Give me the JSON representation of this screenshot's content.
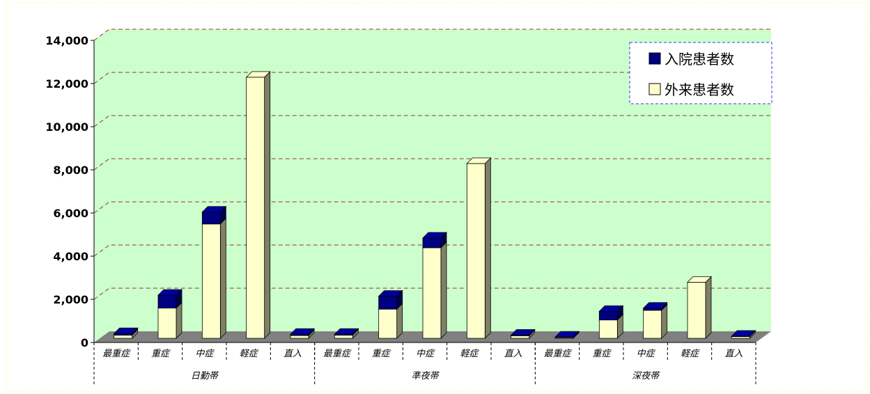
{
  "chart_data": {
    "type": "bar",
    "stacked": true,
    "three_d": true,
    "title": "",
    "xlabel": "",
    "ylabel": "",
    "ylim": [
      0,
      14000
    ],
    "yticks": [
      "0",
      "2,000",
      "4,000",
      "6,000",
      "8,000",
      "10,000",
      "12,000",
      "14,000"
    ],
    "grid": true,
    "legend_position": "top-right",
    "groups": [
      {
        "label": "日勤帯",
        "categories": [
          "最重症",
          "重症",
          "中症",
          "軽症",
          "直入"
        ]
      },
      {
        "label": "準夜帯",
        "categories": [
          "最重症",
          "重症",
          "中症",
          "軽症",
          "直入"
        ]
      },
      {
        "label": "深夜帯",
        "categories": [
          "最重症",
          "重症",
          "中症",
          "軽症",
          "直入"
        ]
      }
    ],
    "series": [
      {
        "name": "外来患者数",
        "color": "#ffffcc",
        "values": [
          150,
          1400,
          5300,
          12100,
          130,
          150,
          1350,
          4200,
          8100,
          120,
          40,
          850,
          1300,
          2600,
          80
        ]
      },
      {
        "name": "入院患者数",
        "color": "#000080",
        "values": [
          70,
          600,
          550,
          0,
          60,
          40,
          600,
          450,
          0,
          30,
          20,
          400,
          100,
          0,
          20
        ]
      }
    ],
    "legend_order": [
      "入院患者数",
      "外来患者数"
    ]
  },
  "colors": {
    "plot_background": "#ccffcc",
    "floor": "#808080",
    "gridline": "#993333",
    "side_face": "#808066",
    "legend_border": "#3333ff"
  }
}
